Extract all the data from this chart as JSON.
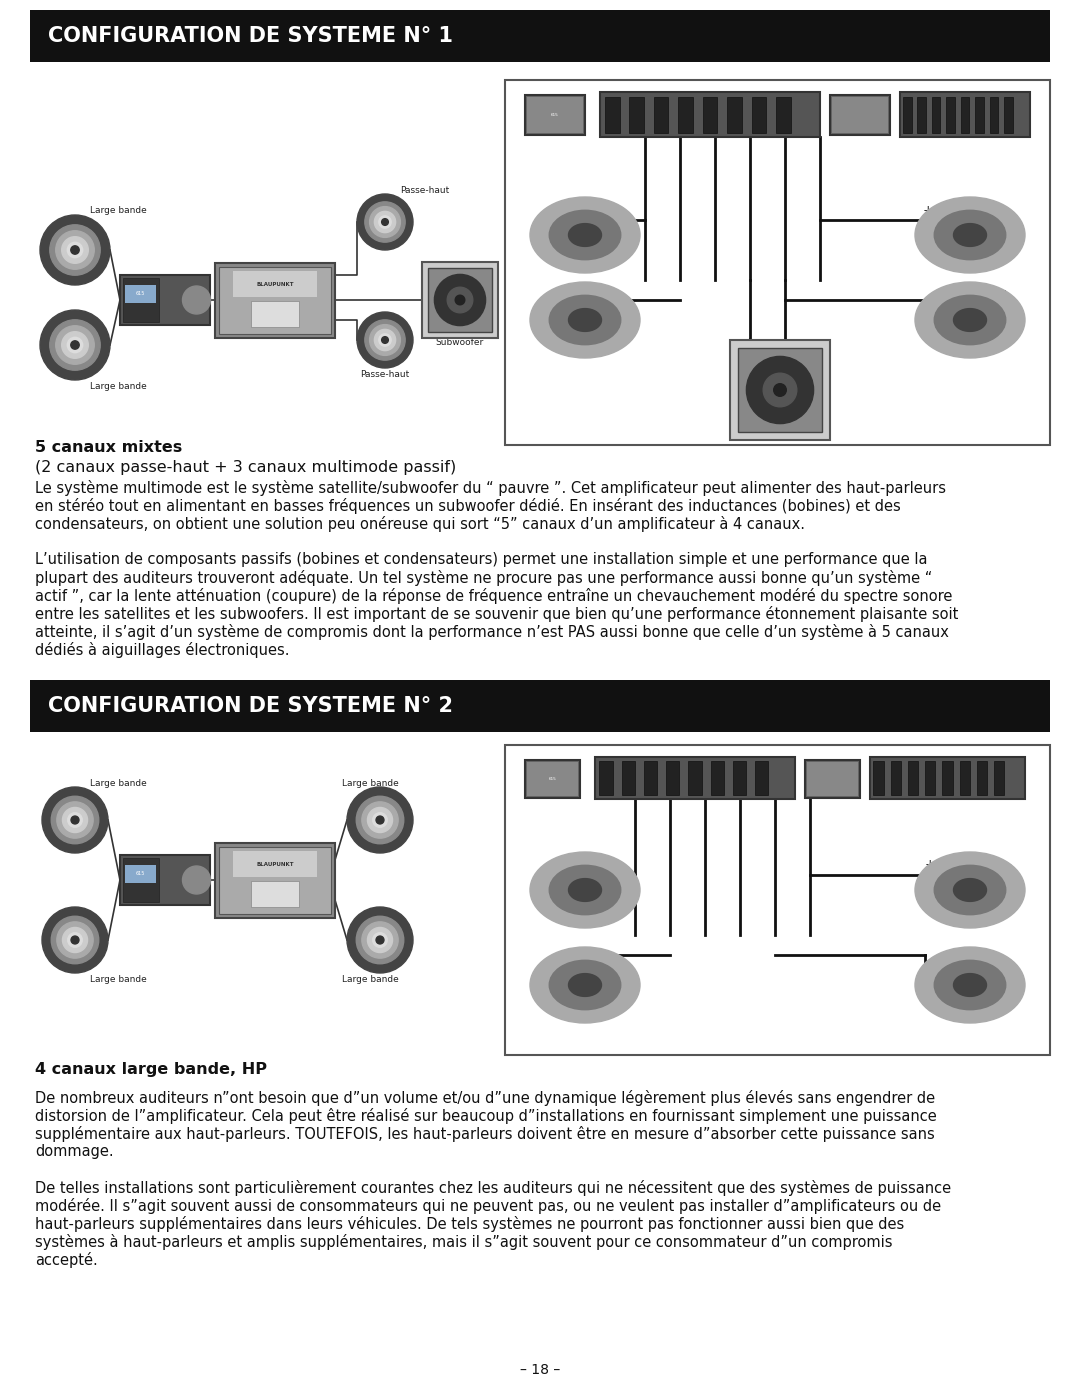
{
  "bg_color": "#ffffff",
  "header_bg": "#111111",
  "header_text_color": "#ffffff",
  "header_fontsize": 15,
  "header1_text": "CONFIGURATION DE SYSTEME N° 1",
  "header2_text": "CONFIGURATION DE SYSTEME N° 2",
  "caption1_line1": "5 canaux mixtes",
  "caption1_line2": "(2 canaux passe-haut + 3 canaux multimode passif)",
  "caption2_line1": "4 canaux large bande, HP",
  "body1": "Le système multimode est le système satellite/subwoofer du “ pauvre ”. Cet amplificateur peut alimenter des haut-parleurs\nen stéréo tout en alimentant en basses fréquences un subwoofer dédié. En insérant des inductances (bobines) et des\ncondensateurs, on obtient une solution peu onéreuse qui sort “5” canaux d’un amplificateur à 4 canaux.",
  "body2": "L’utilisation de composants passifs (bobines et condensateurs) permet une installation simple et une performance que la\nplupart des auditeurs trouveront adéquate. Un tel système ne procure pas une performance aussi bonne qu’un système “\nactif ”, car la lente atténuation (coupure) de la réponse de fréquence entraîne un chevauchement modéré du spectre sonore\nentre les satellites et les subwoofers. Il est important de se souvenir que bien qu’une performance étonnement plaisante soit\natteinte, il s’agit d’un système de compromis dont la performance n’est PAS aussi bonne que celle d’un système à 5 canaux\ndédiés à aiguillages électroniques.",
  "body3": "De nombreux auditeurs n”ont besoin que d”un volume et/ou d”une dynamique légèrement plus élevés sans engendrer de\ndistorsion de l”amplificateur. Cela peut être réalisé sur beaucoup d”installations en fournissant simplement une puissance\nsupplémentaire aux haut-parleurs. TOUTEFOIS, les haut-parleurs doivent être en mesure d”absorber cette puissance sans\ndommage.",
  "body4": "De telles installations sont particulièrement courantes chez les auditeurs qui ne nécessitent que des systèmes de puissance\nmodérée. Il s”agit souvent aussi de consommateurs qui ne peuvent pas, ou ne veulent pas installer d”amplificateurs ou de\nhaut-parleurs supplémentaires dans leurs véhicules. De tels systèmes ne pourront pas fonctionner aussi bien que des\nsystèmes à haut-parleurs et amplis supplémentaires, mais il s”agit souvent pour ce consommateur d”un compromis\naccepté.",
  "footer": "– 18 –",
  "body_fontsize": 10.5,
  "caption_fontsize": 11.5
}
